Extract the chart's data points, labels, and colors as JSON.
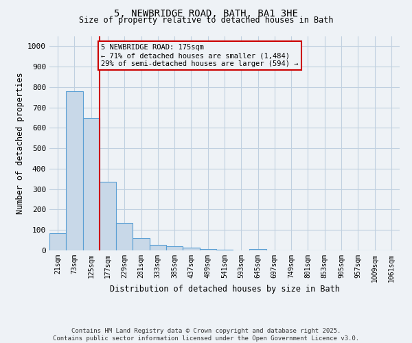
{
  "title_line1": "5, NEWBRIDGE ROAD, BATH, BA1 3HE",
  "title_line2": "Size of property relative to detached houses in Bath",
  "xlabel": "Distribution of detached houses by size in Bath",
  "ylabel": "Number of detached properties",
  "categories": [
    "21sqm",
    "73sqm",
    "125sqm",
    "177sqm",
    "229sqm",
    "281sqm",
    "333sqm",
    "385sqm",
    "437sqm",
    "489sqm",
    "541sqm",
    "593sqm",
    "645sqm",
    "697sqm",
    "749sqm",
    "801sqm",
    "853sqm",
    "905sqm",
    "957sqm",
    "1009sqm",
    "1061sqm"
  ],
  "values": [
    83,
    780,
    648,
    335,
    133,
    62,
    27,
    20,
    15,
    8,
    5,
    0,
    7,
    0,
    0,
    0,
    0,
    0,
    0,
    0,
    0
  ],
  "bar_color": "#c8d8e8",
  "bar_edge_color": "#5a9fd4",
  "bar_edge_width": 0.8,
  "vline_x_index": 3,
  "vline_color": "#cc0000",
  "annotation_text": "5 NEWBRIDGE ROAD: 175sqm\n← 71% of detached houses are smaller (1,484)\n29% of semi-detached houses are larger (594) →",
  "annotation_box_color": "#cc0000",
  "annotation_text_fontsize": 7.5,
  "ylim": [
    0,
    1050
  ],
  "yticks": [
    0,
    100,
    200,
    300,
    400,
    500,
    600,
    700,
    800,
    900,
    1000
  ],
  "grid_color": "#c0d0e0",
  "background_color": "#eef2f6",
  "footer_line1": "Contains HM Land Registry data © Crown copyright and database right 2025.",
  "footer_line2": "Contains public sector information licensed under the Open Government Licence v3.0."
}
